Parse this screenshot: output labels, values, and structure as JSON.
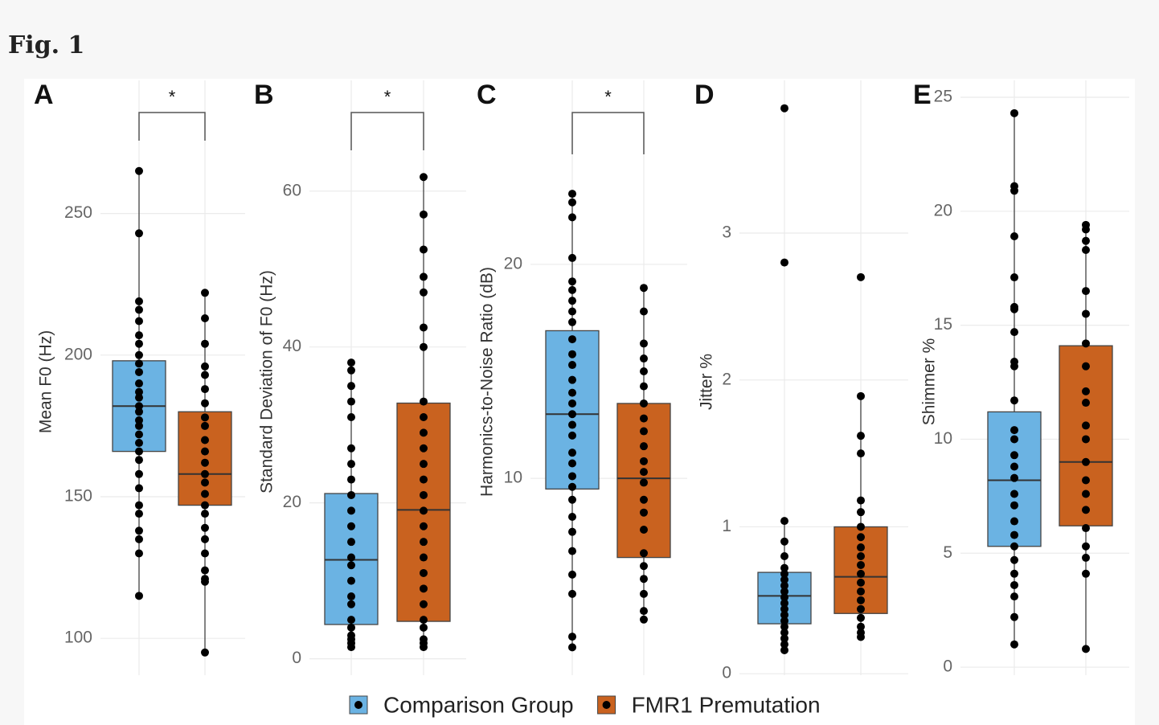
{
  "header": {
    "title": "Fig. 1"
  },
  "legend": {
    "entries": [
      {
        "name": "Comparison Group",
        "color": "#6bb3e3"
      },
      {
        "name": "FMR1 Premutation",
        "color": "#c9621f"
      }
    ]
  },
  "chart_data": [
    {
      "type": "box",
      "panel": "A",
      "y_label": "Mean F0 (Hz)",
      "significance": "*",
      "ylim": [
        87,
        297
      ],
      "yticks": [
        100,
        150,
        200,
        250
      ],
      "series": [
        {
          "q1": 166,
          "median": 182,
          "q3": 198,
          "whisker_low": 115,
          "whisker_high": 265,
          "points": [
            265,
            243,
            219,
            216,
            212,
            207,
            204,
            200,
            197,
            194,
            190,
            187,
            185,
            182,
            180,
            177,
            175,
            172,
            169,
            166,
            163,
            158,
            153,
            147,
            144,
            138,
            135,
            130,
            115
          ]
        },
        {
          "q1": 147,
          "median": 158,
          "q3": 180,
          "whisker_low": 95,
          "whisker_high": 222,
          "points": [
            222,
            213,
            204,
            196,
            193,
            188,
            183,
            178,
            175,
            170,
            166,
            162,
            158,
            155,
            151,
            147,
            144,
            139,
            135,
            130,
            124,
            121,
            120,
            95
          ]
        }
      ]
    },
    {
      "type": "box",
      "panel": "B",
      "y_label": "Standard Deviation of F0 (Hz)",
      "significance": "*",
      "ylim": [
        -2.1,
        74.2
      ],
      "yticks": [
        0,
        20,
        40,
        60
      ],
      "series": [
        {
          "q1": 4.4,
          "median": 12.7,
          "q3": 21.2,
          "whisker_low": 1.5,
          "whisker_high": 38,
          "points": [
            38,
            37,
            35,
            33,
            31,
            27,
            25,
            23,
            21,
            19,
            17,
            15,
            13,
            12,
            10,
            8,
            7,
            5,
            4,
            3,
            2.5,
            2,
            1.5
          ]
        },
        {
          "q1": 4.8,
          "median": 19.1,
          "q3": 32.8,
          "whisker_low": 1.5,
          "whisker_high": 61.8,
          "points": [
            61.8,
            57,
            52.5,
            49,
            47,
            42.5,
            40,
            33,
            31,
            29,
            27,
            25,
            23,
            21,
            19,
            17,
            15,
            13,
            11,
            9,
            7,
            5,
            4,
            2.5,
            2,
            1.5
          ]
        }
      ]
    },
    {
      "type": "box",
      "panel": "C",
      "y_label": "Harmonics-to-Noise Ratio (dB)",
      "significance": "*",
      "ylim": [
        0.8,
        28.6
      ],
      "yticks": [
        10,
        20
      ],
      "series": [
        {
          "q1": 9.5,
          "median": 13,
          "q3": 16.9,
          "whisker_low": 2.1,
          "whisker_high": 23.3,
          "points": [
            23.3,
            22.9,
            22.2,
            20.3,
            19.2,
            18.8,
            18.3,
            17.8,
            17.3,
            16.5,
            15.8,
            15.3,
            14.6,
            14.0,
            13.5,
            13.0,
            12.5,
            12.0,
            11.2,
            10.7,
            10.1,
            9.6,
            9.0,
            8.2,
            7.5,
            6.6,
            5.5,
            4.6,
            2.6,
            2.1
          ]
        },
        {
          "q1": 6.3,
          "median": 10,
          "q3": 13.5,
          "whisker_low": 3.4,
          "whisker_high": 18.9,
          "points": [
            18.9,
            17.8,
            16.3,
            15.6,
            15.0,
            14.3,
            13.5,
            12.8,
            12.2,
            11.5,
            10.8,
            10.3,
            9.8,
            9.0,
            8.4,
            7.6,
            6.5,
            5.9,
            5.3,
            4.6,
            3.8,
            3.4
          ]
        }
      ]
    },
    {
      "type": "box",
      "panel": "D",
      "y_label": "Jitter %",
      "ylim": [
        -0.01,
        4.04
      ],
      "yticks": [
        0,
        1,
        2,
        3
      ],
      "series": [
        {
          "q1": 0.34,
          "median": 0.53,
          "q3": 0.69,
          "whisker_low": 0.16,
          "whisker_high": 1.04,
          "points": [
            3.85,
            2.8,
            1.04,
            0.9,
            0.8,
            0.72,
            0.68,
            0.64,
            0.6,
            0.56,
            0.52,
            0.48,
            0.44,
            0.4,
            0.36,
            0.32,
            0.28,
            0.24,
            0.2,
            0.16
          ]
        },
        {
          "q1": 0.41,
          "median": 0.66,
          "q3": 1.0,
          "whisker_low": 0.25,
          "whisker_high": 1.89,
          "points": [
            2.7,
            1.89,
            1.62,
            1.5,
            1.18,
            1.1,
            1.0,
            0.93,
            0.86,
            0.8,
            0.74,
            0.68,
            0.62,
            0.56,
            0.5,
            0.44,
            0.38,
            0.32,
            0.28,
            0.25
          ]
        }
      ]
    },
    {
      "type": "box",
      "panel": "E",
      "y_label": "Shimmer %",
      "ylim": [
        -0.35,
        25.74
      ],
      "yticks": [
        0,
        5,
        10,
        15,
        20,
        25
      ],
      "series": [
        {
          "q1": 5.3,
          "median": 8.2,
          "q3": 11.2,
          "whisker_low": 1.0,
          "whisker_high": 24.3,
          "points": [
            24.3,
            21.1,
            20.9,
            18.9,
            17.1,
            15.8,
            15.7,
            14.7,
            13.4,
            13.2,
            11.7,
            10.4,
            10.0,
            9.3,
            8.8,
            8.3,
            7.6,
            7.1,
            6.4,
            5.8,
            5.3,
            4.7,
            4.1,
            3.6,
            3.1,
            2.2,
            1.0
          ]
        },
        {
          "q1": 6.2,
          "median": 9.0,
          "q3": 14.1,
          "whisker_low": 0.8,
          "whisker_high": 19.4,
          "points": [
            19.4,
            19.2,
            18.7,
            18.3,
            16.5,
            15.5,
            14.2,
            13.2,
            12.1,
            11.6,
            10.6,
            10.0,
            9.0,
            8.2,
            7.6,
            6.9,
            6.1,
            5.3,
            4.8,
            4.1,
            0.8
          ]
        }
      ]
    }
  ]
}
